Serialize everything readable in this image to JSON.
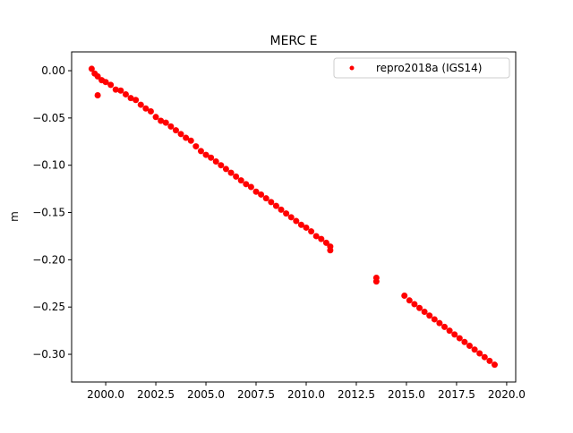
{
  "chart_data": {
    "type": "scatter",
    "title": "MERC E",
    "y_label": "m",
    "legend_position": "upper right",
    "xlim": [
      1998.3,
      2020.45
    ],
    "ylim": [
      -0.3293,
      0.0199
    ],
    "xticks": [
      {
        "value": 2000,
        "label": "2000.0"
      },
      {
        "value": 2002.5,
        "label": "2002.5"
      },
      {
        "value": 2005,
        "label": "2005.0"
      },
      {
        "value": 2007.5,
        "label": "2007.5"
      },
      {
        "value": 2010,
        "label": "2010.0"
      },
      {
        "value": 2012.5,
        "label": "2012.5"
      },
      {
        "value": 2015,
        "label": "2015.0"
      },
      {
        "value": 2017.5,
        "label": "2017.5"
      },
      {
        "value": 2020,
        "label": "2020.0"
      }
    ],
    "yticks": [
      {
        "value": 0,
        "label": "0.00"
      },
      {
        "value": -0.05,
        "label": "−0.05"
      },
      {
        "value": -0.1,
        "label": "−0.10"
      },
      {
        "value": -0.15,
        "label": "−0.15"
      },
      {
        "value": -0.2,
        "label": "−0.20"
      },
      {
        "value": -0.25,
        "label": "−0.25"
      },
      {
        "value": -0.3,
        "label": "−0.30"
      }
    ],
    "series": [
      {
        "name": "repro2018a (IGS14)",
        "color": "#ff0000",
        "x": [
          1999.3,
          1999.45,
          1999.6,
          1999.6,
          1999.8,
          2000.0,
          2000.25,
          2000.5,
          2000.75,
          2001.0,
          2001.25,
          2001.5,
          2001.75,
          2002.0,
          2002.25,
          2002.5,
          2002.75,
          2003.0,
          2003.25,
          2003.5,
          2003.75,
          2004.0,
          2004.25,
          2004.5,
          2004.75,
          2005.0,
          2005.25,
          2005.5,
          2005.75,
          2006.0,
          2006.25,
          2006.5,
          2006.75,
          2007.0,
          2007.25,
          2007.5,
          2007.75,
          2008.0,
          2008.25,
          2008.5,
          2008.75,
          2009.0,
          2009.25,
          2009.5,
          2009.75,
          2010.0,
          2010.25,
          2010.5,
          2010.75,
          2011.0,
          2011.2,
          2011.2,
          2013.5,
          2013.5,
          2014.9,
          2015.15,
          2015.4,
          2015.65,
          2015.9,
          2016.15,
          2016.4,
          2016.65,
          2016.9,
          2017.15,
          2017.4,
          2017.65,
          2017.9,
          2018.15,
          2018.4,
          2018.65,
          2018.9,
          2019.15,
          2019.4
        ],
        "values": [
          0.002,
          -0.003,
          -0.006,
          -0.026,
          -0.01,
          -0.012,
          -0.015,
          -0.02,
          -0.021,
          -0.025,
          -0.029,
          -0.031,
          -0.036,
          -0.04,
          -0.043,
          -0.049,
          -0.053,
          -0.055,
          -0.059,
          -0.063,
          -0.067,
          -0.071,
          -0.074,
          -0.08,
          -0.085,
          -0.089,
          -0.092,
          -0.096,
          -0.1,
          -0.104,
          -0.108,
          -0.112,
          -0.116,
          -0.12,
          -0.123,
          -0.128,
          -0.131,
          -0.135,
          -0.139,
          -0.143,
          -0.147,
          -0.151,
          -0.155,
          -0.159,
          -0.163,
          -0.166,
          -0.17,
          -0.175,
          -0.178,
          -0.182,
          -0.186,
          -0.19,
          -0.219,
          -0.223,
          -0.238,
          -0.243,
          -0.247,
          -0.251,
          -0.255,
          -0.259,
          -0.263,
          -0.267,
          -0.271,
          -0.275,
          -0.279,
          -0.283,
          -0.287,
          -0.291,
          -0.295,
          -0.299,
          -0.303,
          -0.307,
          -0.311
        ]
      }
    ]
  }
}
